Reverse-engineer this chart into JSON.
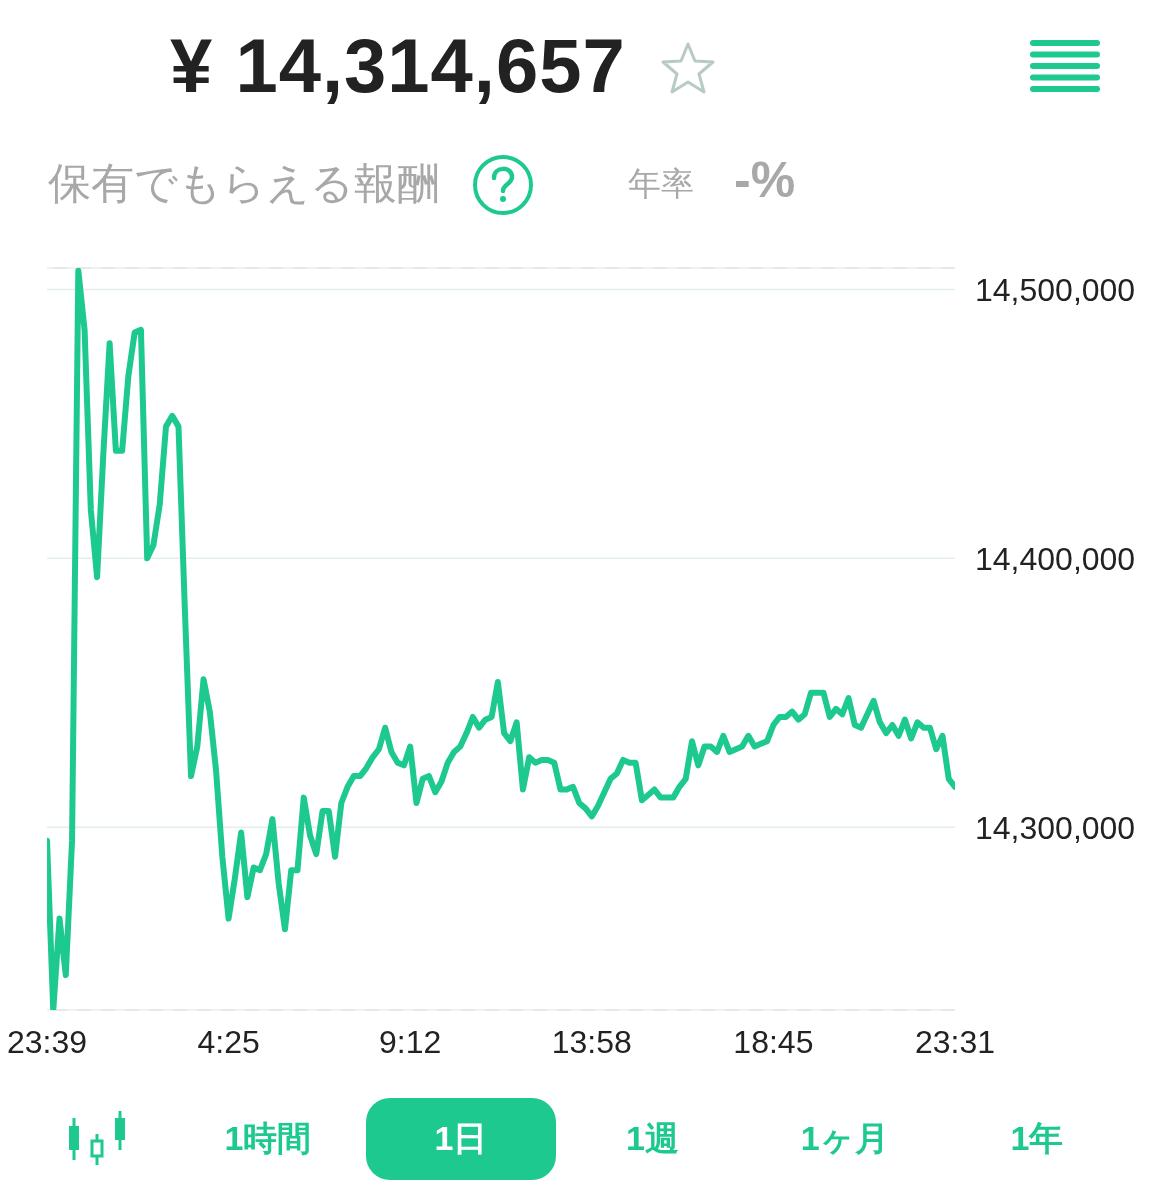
{
  "chart_data": {
    "type": "line",
    "title": "¥ 14,314,657",
    "subtitle": "保有でもらえる報酬",
    "annotations": [
      "年率",
      "-%",
      "1時間",
      "1日",
      "1週",
      "1ヶ月",
      "1年"
    ],
    "categories": [
      "23:39",
      null,
      null,
      null,
      null,
      null,
      null,
      null,
      null,
      null,
      null,
      null,
      null,
      null,
      null,
      null,
      null,
      null,
      null,
      null,
      null,
      null,
      null,
      null,
      null,
      null,
      null,
      null,
      null,
      "4:25",
      null,
      null,
      null,
      null,
      null,
      null,
      null,
      null,
      null,
      null,
      null,
      null,
      null,
      null,
      null,
      null,
      null,
      null,
      null,
      null,
      null,
      null,
      null,
      null,
      null,
      null,
      null,
      null,
      "9:12",
      null,
      null,
      null,
      null,
      null,
      null,
      null,
      null,
      null,
      null,
      null,
      null,
      null,
      null,
      null,
      null,
      null,
      null,
      null,
      null,
      null,
      null,
      null,
      null,
      null,
      null,
      null,
      null,
      "13:58",
      null,
      null,
      null,
      null,
      null,
      null,
      null,
      null,
      null,
      null,
      null,
      null,
      null,
      null,
      null,
      null,
      null,
      null,
      null,
      null,
      null,
      null,
      null,
      null,
      null,
      null,
      null,
      null,
      "18:45",
      null,
      null,
      null,
      null,
      null,
      null,
      null,
      null,
      null,
      null,
      null,
      null,
      null,
      null,
      null,
      null,
      null,
      null,
      null,
      null,
      null,
      null,
      null,
      null,
      null,
      null,
      null,
      null,
      "23:31"
    ],
    "series": [
      {
        "color": "#1ec990",
        "values": [
          14295000,
          14232000,
          14266000,
          14245000,
          14295000,
          14507000,
          14485000,
          14418000,
          14393000,
          14439000,
          14480000,
          14440000,
          14440000,
          14468000,
          14484000,
          14485000,
          14400000,
          14405000,
          14420000,
          14449000,
          14453000,
          14449000,
          14382000,
          14319000,
          14330000,
          14355000,
          14343000,
          14321000,
          14289000,
          14266000,
          14281000,
          14298000,
          14274000,
          14285000,
          14284000,
          14290000,
          14303000,
          14279000,
          14262000,
          14284000,
          14284000,
          14311000,
          14297000,
          14290000,
          14306000,
          14306000,
          14289000,
          14309000,
          14315000,
          14319000,
          14319000,
          14322000,
          14326000,
          14329000,
          14337000,
          14328000,
          14324000,
          14323000,
          14330000,
          14309000,
          14318000,
          14319000,
          14313000,
          14317000,
          14324000,
          14328000,
          14330000,
          14335000,
          14341000,
          14337000,
          14340000,
          14341000,
          14354000,
          14335000,
          14332000,
          14339000,
          14314000,
          14326000,
          14324000,
          14325000,
          14325000,
          14324000,
          14314000,
          14314000,
          14315000,
          14309000,
          14307000,
          14304000,
          14308000,
          14313000,
          14318000,
          14320000,
          14325000,
          14324000,
          14324000,
          14310000,
          14312000,
          14314000,
          14311000,
          14311000,
          14311000,
          14315000,
          14318000,
          14332000,
          14323000,
          14330000,
          14330000,
          14328000,
          14334000,
          14328000,
          14329000,
          14330000,
          14334000,
          14330000,
          14331000,
          14332000,
          14338000,
          14341000,
          14341000,
          14343000,
          14340000,
          14342000,
          14350000,
          14350000,
          14350000,
          14341000,
          14344000,
          14342000,
          14348000,
          14338000,
          14337000,
          14342000,
          14347000,
          14339000,
          14335000,
          14338000,
          14334000,
          14340000,
          14333000,
          14339000,
          14337000,
          14337000,
          14329000,
          14334000,
          14318000,
          14315000
        ]
      }
    ],
    "ylim": [
      14232000,
      14508000
    ],
    "yticks": [
      {
        "value": 14300000,
        "label": "14,300,000"
      },
      {
        "value": 14400000,
        "label": "14,400,000"
      },
      {
        "value": 14500000,
        "label": "14,500,000"
      }
    ],
    "grid": "y",
    "line_style": "solid",
    "ref_lines": [
      {
        "axis": "y",
        "value": 14508000,
        "color": "#e8e8e8",
        "line_style": "dashed"
      },
      {
        "axis": "y",
        "value": 14232000,
        "color": "#e8e8e8",
        "line_style": "dashed"
      }
    ]
  }
}
